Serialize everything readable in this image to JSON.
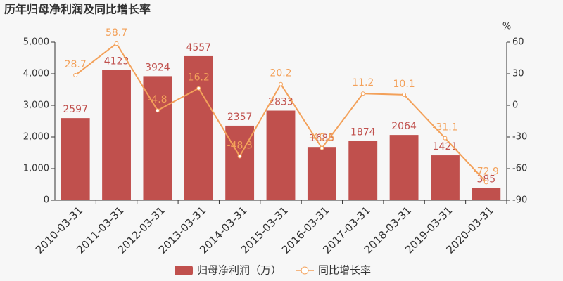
{
  "chart_data": {
    "type": "bar",
    "title": "历年归母净利润及同比增长率",
    "categories": [
      "2010-03-31",
      "2011-03-31",
      "2012-03-31",
      "2013-03-31",
      "2014-03-31",
      "2015-03-31",
      "2016-03-31",
      "2017-03-31",
      "2018-03-31",
      "2019-03-31",
      "2020-03-31"
    ],
    "series": [
      {
        "name": "归母净利润（万）",
        "type": "bar",
        "color": "#c0504d",
        "values": [
          2597,
          4123,
          3924,
          4557,
          2357,
          2833,
          1685,
          1874,
          2064,
          1421,
          385
        ]
      },
      {
        "name": "同比增长率",
        "type": "line",
        "axis": "y2",
        "color": "#f3a15a",
        "values": [
          28.7,
          58.7,
          -4.8,
          16.2,
          -48.3,
          20.2,
          -40.5,
          11.2,
          10.1,
          -31.1,
          -72.9
        ]
      }
    ],
    "ylim": [
      0,
      5000
    ],
    "yticks": [
      0,
      {
        "value": 1000,
        "label": "1,000"
      },
      {
        "value": 2000,
        "label": "2,000"
      },
      {
        "value": 3000,
        "label": "3,000"
      },
      {
        "value": 4000,
        "label": "4,000"
      },
      {
        "value": 5000,
        "label": "5,000"
      }
    ],
    "y2lim": [
      -90,
      60
    ],
    "y2ticks": [
      -90,
      -60,
      -30,
      0,
      30,
      60
    ],
    "y2label": "%",
    "grid": false,
    "legend": "bottom"
  }
}
